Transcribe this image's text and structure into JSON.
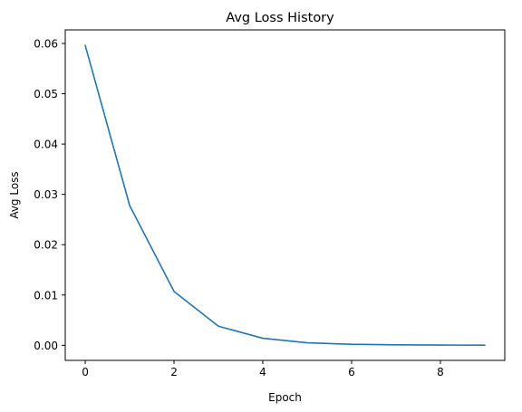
{
  "chart_data": {
    "type": "line",
    "title": "Avg Loss History",
    "xlabel": "Epoch",
    "ylabel": "Avg Loss",
    "xlim": [
      -0.45,
      9.45
    ],
    "ylim": [
      -0.003,
      0.0627
    ],
    "x_ticks": [
      0,
      2,
      4,
      6,
      8
    ],
    "x_tick_labels": [
      "0",
      "2",
      "4",
      "6",
      "8"
    ],
    "y_ticks": [
      0.0,
      0.01,
      0.02,
      0.03,
      0.04,
      0.05,
      0.06
    ],
    "y_tick_labels": [
      "0.00",
      "0.01",
      "0.02",
      "0.03",
      "0.04",
      "0.05",
      "0.06"
    ],
    "grid": false,
    "series": [
      {
        "color": "#1f77b4",
        "x": [
          0,
          1,
          2,
          3,
          4,
          5,
          6,
          7,
          8,
          9
        ],
        "y": [
          0.0596,
          0.0278,
          0.0107,
          0.0038,
          0.0014,
          0.0005,
          0.0002,
          0.0001,
          5e-05,
          2e-05
        ]
      }
    ]
  }
}
